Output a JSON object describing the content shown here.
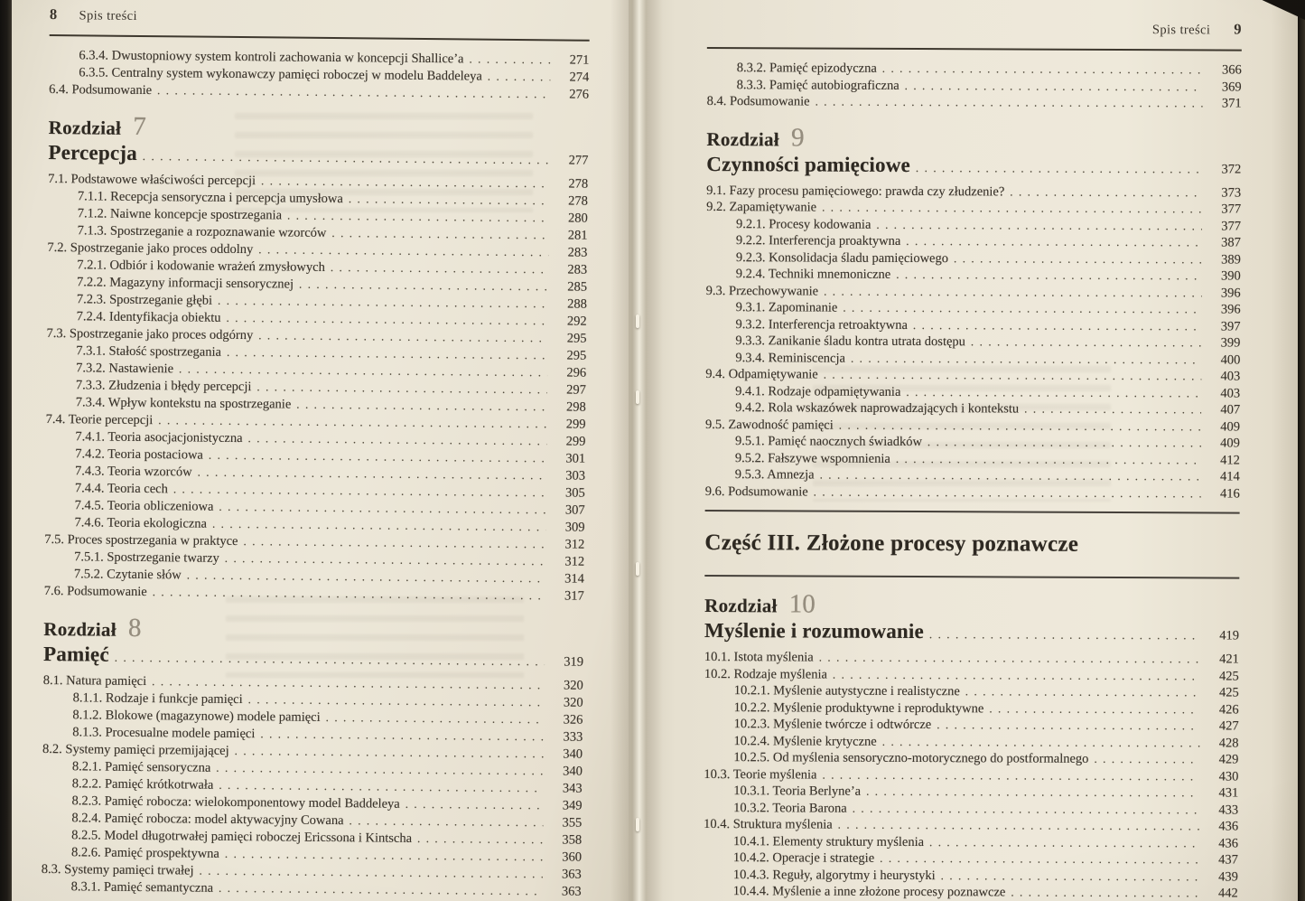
{
  "meta": {
    "document_type": "Spis treści (table of contents, photographed book spread)",
    "paper_color": "#ece7d8",
    "ink_color": "#39332b",
    "chapter_number_color": "#958d7e"
  },
  "left_page": {
    "page_number": "8",
    "header_label": "Spis treści",
    "blocks": [
      {
        "type": "entries",
        "items": [
          {
            "level": 2,
            "label": "6.3.4. Dwustopniowy system kontroli zachowania w koncepcji Shallice’a",
            "page": "271"
          },
          {
            "level": 2,
            "label": "6.3.5. Centralny system wykonawczy pamięci roboczej w modelu Baddeleya",
            "page": "274"
          },
          {
            "level": 1,
            "label": "6.4. Podsumowanie",
            "page": "276"
          }
        ]
      },
      {
        "type": "chapter",
        "word": "Rozdział",
        "number": "7",
        "title": "Percepcja",
        "page": "277"
      },
      {
        "type": "entries",
        "items": [
          {
            "level": 1,
            "label": "7.1. Podstawowe właściwości percepcji",
            "page": "278"
          },
          {
            "level": 2,
            "label": "7.1.1. Recepcja sensoryczna i percepcja umysłowa",
            "page": "278"
          },
          {
            "level": 2,
            "label": "7.1.2. Naiwne koncepcje spostrzegania",
            "page": "280"
          },
          {
            "level": 2,
            "label": "7.1.3. Spostrzeganie a rozpoznawanie wzorców",
            "page": "281"
          },
          {
            "level": 1,
            "label": "7.2. Spostrzeganie jako proces oddolny",
            "page": "283"
          },
          {
            "level": 2,
            "label": "7.2.1. Odbiór i kodowanie wrażeń zmysłowych",
            "page": "283"
          },
          {
            "level": 2,
            "label": "7.2.2. Magazyny informacji sensorycznej",
            "page": "285"
          },
          {
            "level": 2,
            "label": "7.2.3. Spostrzeganie głębi",
            "page": "288"
          },
          {
            "level": 2,
            "label": "7.2.4. Identyfikacja obiektu",
            "page": "292"
          },
          {
            "level": 1,
            "label": "7.3. Spostrzeganie jako proces odgórny",
            "page": "295"
          },
          {
            "level": 2,
            "label": "7.3.1. Stałość spostrzegania",
            "page": "295"
          },
          {
            "level": 2,
            "label": "7.3.2. Nastawienie",
            "page": "296"
          },
          {
            "level": 2,
            "label": "7.3.3. Złudzenia i błędy percepcji",
            "page": "297"
          },
          {
            "level": 2,
            "label": "7.3.4. Wpływ kontekstu na spostrzeganie",
            "page": "298"
          },
          {
            "level": 1,
            "label": "7.4. Teorie percepcji",
            "page": "299"
          },
          {
            "level": 2,
            "label": "7.4.1. Teoria asocjacjonistyczna",
            "page": "299"
          },
          {
            "level": 2,
            "label": "7.4.2. Teoria postaciowa",
            "page": "301"
          },
          {
            "level": 2,
            "label": "7.4.3. Teoria wzorców",
            "page": "303"
          },
          {
            "level": 2,
            "label": "7.4.4. Teoria cech",
            "page": "305"
          },
          {
            "level": 2,
            "label": "7.4.5. Teoria obliczeniowa",
            "page": "307"
          },
          {
            "level": 2,
            "label": "7.4.6. Teoria ekologiczna",
            "page": "309"
          },
          {
            "level": 1,
            "label": "7.5. Proces spostrzegania w praktyce",
            "page": "312"
          },
          {
            "level": 2,
            "label": "7.5.1. Spostrzeganie twarzy",
            "page": "312"
          },
          {
            "level": 2,
            "label": "7.5.2. Czytanie słów",
            "page": "314"
          },
          {
            "level": 1,
            "label": "7.6. Podsumowanie",
            "page": "317"
          }
        ]
      },
      {
        "type": "chapter",
        "word": "Rozdział",
        "number": "8",
        "title": "Pamięć",
        "page": "319"
      },
      {
        "type": "entries",
        "items": [
          {
            "level": 1,
            "label": "8.1. Natura pamięci",
            "page": "320"
          },
          {
            "level": 2,
            "label": "8.1.1. Rodzaje i funkcje pamięci",
            "page": "320"
          },
          {
            "level": 2,
            "label": "8.1.2. Blokowe (magazynowe) modele pamięci",
            "page": "326"
          },
          {
            "level": 2,
            "label": "8.1.3. Procesualne modele pamięci",
            "page": "333"
          },
          {
            "level": 1,
            "label": "8.2. Systemy pamięci przemijającej",
            "page": "340"
          },
          {
            "level": 2,
            "label": "8.2.1. Pamięć sensoryczna",
            "page": "340"
          },
          {
            "level": 2,
            "label": "8.2.2. Pamięć krótkotrwała",
            "page": "343"
          },
          {
            "level": 2,
            "label": "8.2.3. Pamięć robocza: wielokomponentowy model Baddeleya",
            "page": "349"
          },
          {
            "level": 2,
            "label": "8.2.4. Pamięć robocza: model aktywacyjny Cowana",
            "page": "355"
          },
          {
            "level": 2,
            "label": "8.2.5. Model długotrwałej pamięci roboczej Ericssona i Kintscha",
            "page": "358"
          },
          {
            "level": 2,
            "label": "8.2.6. Pamięć prospektywna",
            "page": "360"
          },
          {
            "level": 1,
            "label": "8.3. Systemy pamięci trwałej",
            "page": "363"
          },
          {
            "level": 2,
            "label": "8.3.1. Pamięć semantyczna",
            "page": "363"
          }
        ]
      }
    ]
  },
  "right_page": {
    "page_number": "9",
    "header_label": "Spis treści",
    "blocks": [
      {
        "type": "entries",
        "items": [
          {
            "level": 2,
            "label": "8.3.2. Pamięć epizodyczna",
            "page": "366"
          },
          {
            "level": 2,
            "label": "8.3.3. Pamięć autobiograficzna",
            "page": "369"
          },
          {
            "level": 1,
            "label": "8.4. Podsumowanie",
            "page": "371"
          }
        ]
      },
      {
        "type": "chapter",
        "word": "Rozdział",
        "number": "9",
        "title": "Czynności pamięciowe",
        "page": "372"
      },
      {
        "type": "entries",
        "items": [
          {
            "level": 1,
            "label": "9.1. Fazy procesu pamięciowego: prawda czy złudzenie?",
            "page": "373"
          },
          {
            "level": 1,
            "label": "9.2. Zapamiętywanie",
            "page": "377"
          },
          {
            "level": 2,
            "label": "9.2.1. Procesy kodowania",
            "page": "377"
          },
          {
            "level": 2,
            "label": "9.2.2. Interferencja proaktywna",
            "page": "387"
          },
          {
            "level": 2,
            "label": "9.2.3. Konsolidacja śladu pamięciowego",
            "page": "389"
          },
          {
            "level": 2,
            "label": "9.2.4. Techniki mnemoniczne",
            "page": "390"
          },
          {
            "level": 1,
            "label": "9.3. Przechowywanie",
            "page": "396"
          },
          {
            "level": 2,
            "label": "9.3.1. Zapominanie",
            "page": "396"
          },
          {
            "level": 2,
            "label": "9.3.2. Interferencja retroaktywna",
            "page": "397"
          },
          {
            "level": 2,
            "label": "9.3.3. Zanikanie śladu kontra utrata dostępu",
            "page": "399"
          },
          {
            "level": 2,
            "label": "9.3.4. Reminiscencja",
            "page": "400"
          },
          {
            "level": 1,
            "label": "9.4. Odpamiętywanie",
            "page": "403"
          },
          {
            "level": 2,
            "label": "9.4.1. Rodzaje odpamiętywania",
            "page": "403"
          },
          {
            "level": 2,
            "label": "9.4.2. Rola wskazówek naprowadzających i kontekstu",
            "page": "407"
          },
          {
            "level": 1,
            "label": "9.5. Zawodność pamięci",
            "page": "409"
          },
          {
            "level": 2,
            "label": "9.5.1. Pamięć naocznych świadków",
            "page": "409"
          },
          {
            "level": 2,
            "label": "9.5.2. Fałszywe wspomnienia",
            "page": "412"
          },
          {
            "level": 2,
            "label": "9.5.3. Amnezja",
            "page": "414"
          },
          {
            "level": 1,
            "label": "9.6. Podsumowanie",
            "page": "416"
          }
        ]
      },
      {
        "type": "part",
        "title": "Część III. Złożone procesy poznawcze"
      },
      {
        "type": "chapter",
        "word": "Rozdział",
        "number": "10",
        "title": "Myślenie i rozumowanie",
        "page": "419"
      },
      {
        "type": "entries",
        "items": [
          {
            "level": 1,
            "label": "10.1. Istota myślenia",
            "page": "421"
          },
          {
            "level": 1,
            "label": "10.2. Rodzaje myślenia",
            "page": "425"
          },
          {
            "level": 2,
            "label": "10.2.1. Myślenie autystyczne i realistyczne",
            "page": "425"
          },
          {
            "level": 2,
            "label": "10.2.2. Myślenie produktywne i reproduktywne",
            "page": "426"
          },
          {
            "level": 2,
            "label": "10.2.3. Myślenie twórcze i odtwórcze",
            "page": "427"
          },
          {
            "level": 2,
            "label": "10.2.4. Myślenie krytyczne",
            "page": "428"
          },
          {
            "level": 2,
            "label": "10.2.5. Od myślenia sensoryczno-motorycznego do postformalnego",
            "page": "429"
          },
          {
            "level": 1,
            "label": "10.3. Teorie myślenia",
            "page": "430"
          },
          {
            "level": 2,
            "label": "10.3.1. Teoria Berlyne’a",
            "page": "431"
          },
          {
            "level": 2,
            "label": "10.3.2. Teoria Barona",
            "page": "433"
          },
          {
            "level": 1,
            "label": "10.4. Struktura myślenia",
            "page": "436"
          },
          {
            "level": 2,
            "label": "10.4.1. Elementy struktury myślenia",
            "page": "436"
          },
          {
            "level": 2,
            "label": "10.4.2. Operacje i strategie",
            "page": "437"
          },
          {
            "level": 2,
            "label": "10.4.3. Reguły, algorytmy i heurystyki",
            "page": "439"
          },
          {
            "level": 2,
            "label": "10.4.4. Myślenie a inne złożone procesy poznawcze",
            "page": "442"
          }
        ]
      }
    ]
  }
}
